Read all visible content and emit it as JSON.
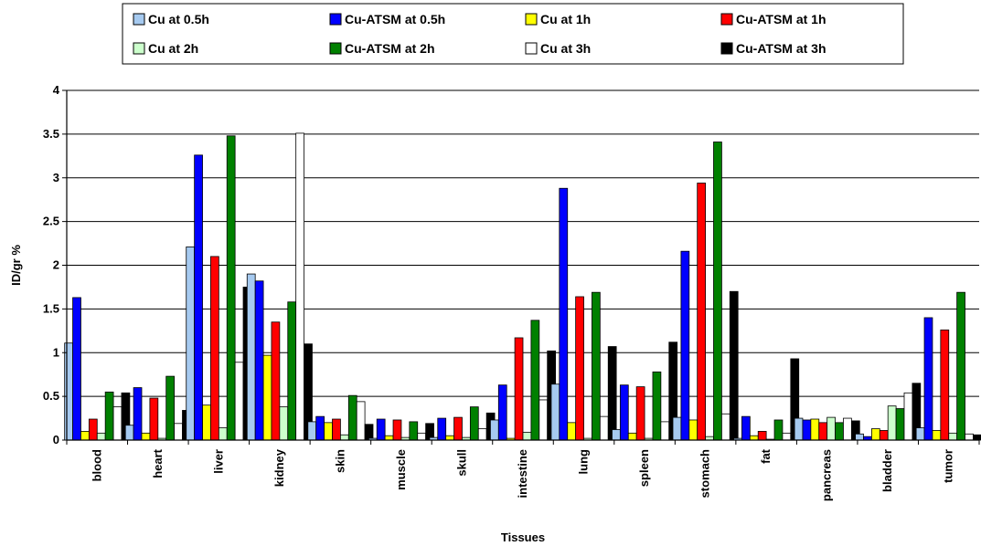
{
  "chart_data": {
    "type": "bar",
    "title": "",
    "xlabel": "Tissues",
    "ylabel": "ID/gr %",
    "ylim": [
      0,
      4
    ],
    "yticks": [
      "0",
      "0.5",
      "1",
      "1.5",
      "2",
      "2.5",
      "3",
      "3.5",
      "4"
    ],
    "grid": true,
    "legend_position": "top",
    "categories": [
      "blood",
      "heart",
      "liver",
      "kidney",
      "skin",
      "muscle",
      "skull",
      "intestine",
      "lung",
      "spleen",
      "stomach",
      "fat",
      "pancreas",
      "bladder",
      "tumor"
    ],
    "series": [
      {
        "name": "Cu at 0.5h",
        "color": "#a6caf0",
        "values": [
          1.11,
          0.17,
          2.21,
          1.9,
          0.21,
          0.02,
          0.03,
          0.23,
          0.64,
          0.12,
          0.26,
          0.02,
          0.25,
          0.07,
          0.14
        ]
      },
      {
        "name": "Cu-ATSM at 0.5h",
        "color": "#0000ff",
        "values": [
          1.63,
          0.6,
          3.26,
          1.82,
          0.27,
          0.24,
          0.25,
          0.63,
          2.88,
          0.63,
          2.16,
          0.27,
          0.23,
          0.04,
          1.4
        ]
      },
      {
        "name": "Cu at 1h",
        "color": "#ffff00",
        "values": [
          0.1,
          0.08,
          0.4,
          0.97,
          0.2,
          0.05,
          0.05,
          0.02,
          0.2,
          0.08,
          0.23,
          0.05,
          0.24,
          0.13,
          0.11
        ]
      },
      {
        "name": "Cu-ATSM at 1h",
        "color": "#ff0000",
        "values": [
          0.24,
          0.48,
          2.1,
          1.35,
          0.24,
          0.23,
          0.26,
          1.17,
          1.64,
          0.61,
          2.94,
          0.1,
          0.2,
          0.11,
          1.26
        ]
      },
      {
        "name": "Cu at 2h",
        "color": "#ccffcc",
        "values": [
          0.08,
          0.02,
          0.14,
          0.38,
          0.06,
          0.03,
          0.03,
          0.09,
          0.02,
          0.02,
          0.04,
          0.01,
          0.26,
          0.39,
          0.08
        ]
      },
      {
        "name": "Cu-ATSM at 2h",
        "color": "#008000",
        "values": [
          0.55,
          0.73,
          3.48,
          1.58,
          0.51,
          0.21,
          0.38,
          1.37,
          1.69,
          0.78,
          3.41,
          0.23,
          0.2,
          0.36,
          1.69
        ]
      },
      {
        "name": "Cu at 3h",
        "color": "#ffffff",
        "values": [
          0.38,
          0.19,
          0.89,
          3.51,
          0.44,
          0.08,
          0.13,
          0.46,
          0.27,
          0.21,
          0.3,
          0.08,
          0.25,
          0.54,
          0.07
        ]
      },
      {
        "name": "Cu-ATSM at 3h",
        "color": "#000000",
        "values": [
          0.54,
          0.34,
          1.75,
          1.1,
          0.18,
          0.19,
          0.31,
          1.02,
          1.07,
          1.12,
          1.7,
          0.93,
          0.22,
          0.65,
          0.06
        ]
      }
    ]
  }
}
